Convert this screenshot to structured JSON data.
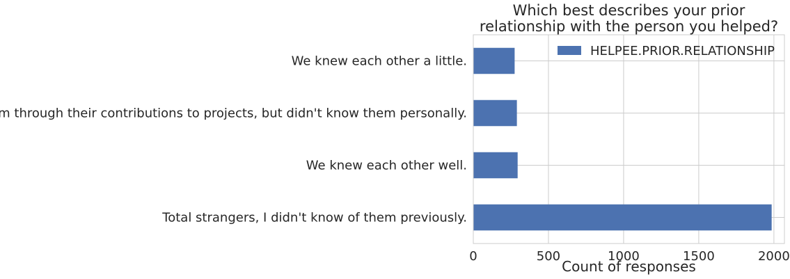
{
  "chart_data": {
    "type": "bar",
    "orientation": "horizontal",
    "title": "Which best describes your prior\nrelationship with the person you helped?",
    "xlabel": "Count of responses",
    "ylabel": "",
    "xlim": [
      0,
      2070
    ],
    "xticks": [
      0,
      500,
      1000,
      1500,
      2000
    ],
    "grid": true,
    "legend_position": "top-right",
    "categories": [
      "We knew each other  a little.",
      "I knew of them through their contributions to projects, but didn't know them personally.",
      "We knew each other well.",
      "Total strangers, I didn't know of them previously."
    ],
    "series": [
      {
        "name": "HELPEE.PRIOR.RELATIONSHIP",
        "color": "#4c72b0",
        "values": [
          275,
          290,
          295,
          1985
        ]
      }
    ]
  }
}
